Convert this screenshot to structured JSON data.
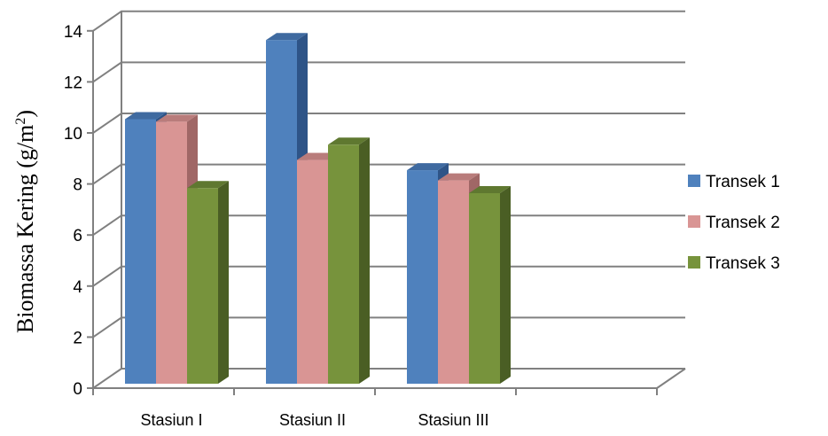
{
  "chart_data": {
    "type": "bar",
    "style": "3d-clustered",
    "title": "",
    "xlabel": "",
    "ylabel": "Biomassa Kering (g/m",
    "ylabel_superscript": "2",
    "ylabel_close": ")",
    "ylim": [
      0,
      14
    ],
    "yticks": [
      "0",
      "2",
      "4",
      "6",
      "8",
      "10",
      "12",
      "14"
    ],
    "grid": true,
    "legend_position": "right",
    "categories": [
      "Stasiun I",
      "Stasiun II",
      "Stasiun III"
    ],
    "series": [
      {
        "name": "Transek 1",
        "values": [
          10.4,
          13.5,
          8.4
        ]
      },
      {
        "name": "Transek 2",
        "values": [
          10.3,
          8.8,
          8.0
        ]
      },
      {
        "name": "Transek 3",
        "values": [
          7.7,
          9.4,
          7.5
        ]
      }
    ],
    "colors": {
      "series_front": [
        "#4F81BD",
        "#D99594",
        "#77933C"
      ],
      "series_top": [
        "#3F6AA0",
        "#B97C7B",
        "#5F7830"
      ],
      "series_side": [
        "#2E5487",
        "#A06766",
        "#4A5E24"
      ],
      "gridline": "#808080",
      "axis": "#808080"
    }
  }
}
